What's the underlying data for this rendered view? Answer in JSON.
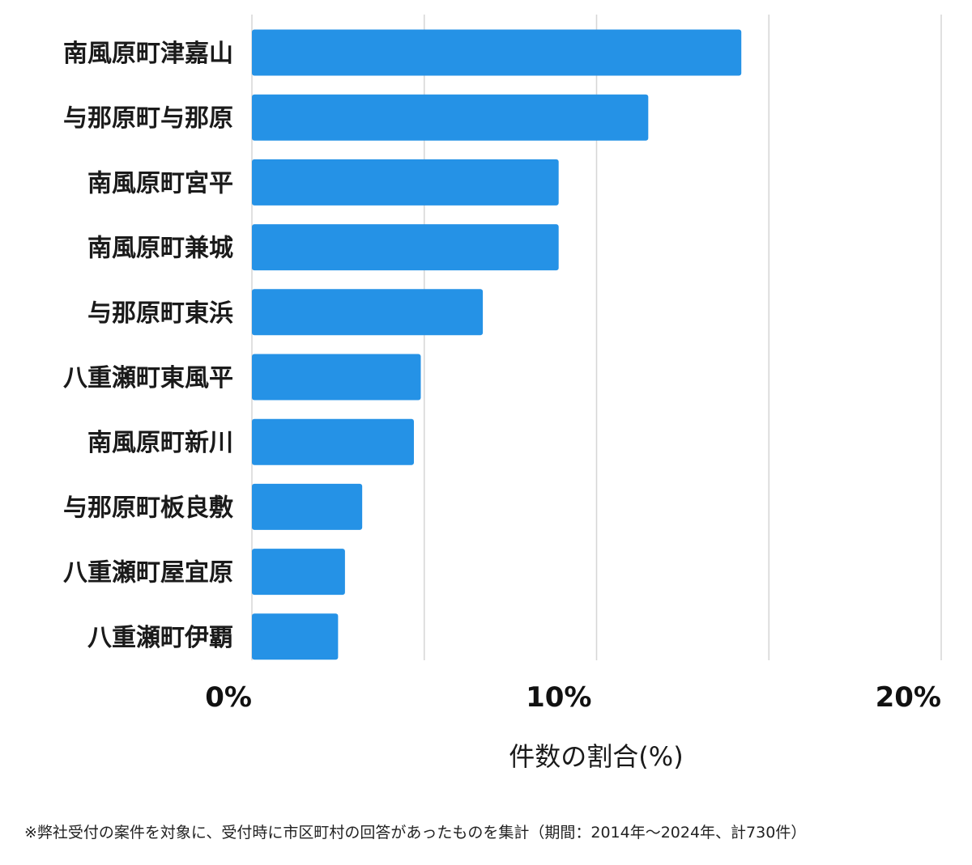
{
  "chart_data": {
    "type": "bar",
    "orientation": "horizontal",
    "categories": [
      "南風原町津嘉山",
      "与那原町与那原",
      "南風原町宮平",
      "南風原町兼城",
      "与那原町東浜",
      "八重瀬町東風平",
      "南風原町新川",
      "与那原町板良敷",
      "八重瀬町屋宜原",
      "八重瀬町伊覇"
    ],
    "values": [
      14.2,
      11.5,
      8.9,
      8.9,
      6.7,
      4.9,
      4.7,
      3.2,
      2.7,
      2.5
    ],
    "xlim": [
      0,
      20
    ],
    "xticks": [
      0,
      10,
      20
    ],
    "xtick_labels": [
      "0%",
      "10%",
      "20%"
    ],
    "gridlines_at": [
      0,
      5,
      10,
      15,
      20
    ],
    "xlabel": "件数の割合(%)",
    "grid": true,
    "bar_color": "#2592e6",
    "grid_color": "#d6d6d6"
  },
  "footnote": "※弊社受付の案件を対象に、受付時に市区町村の回答があったものを集計（期間：2014年〜2024年、計730件）"
}
